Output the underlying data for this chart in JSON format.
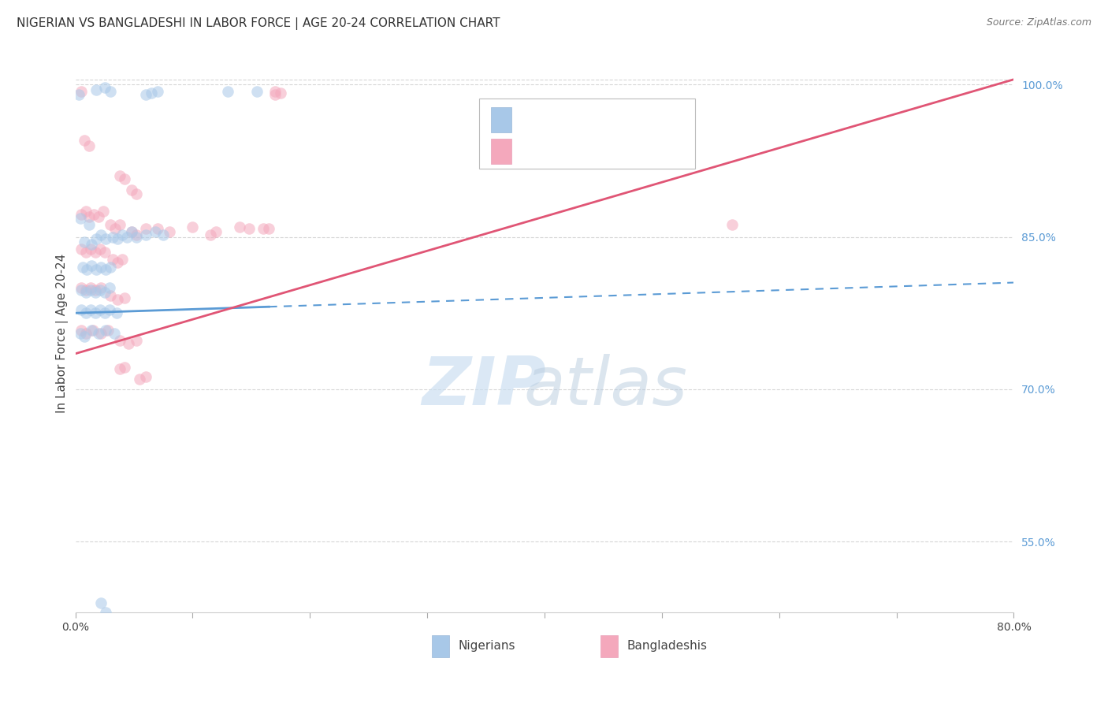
{
  "title": "NIGERIAN VS BANGLADESHI IN LABOR FORCE | AGE 20-24 CORRELATION CHART",
  "source": "Source: ZipAtlas.com",
  "ylabel": "In Labor Force | Age 20-24",
  "xlim": [
    0.0,
    0.8
  ],
  "ylim": [
    0.48,
    1.03
  ],
  "xticks": [
    0.0,
    0.1,
    0.2,
    0.3,
    0.4,
    0.5,
    0.6,
    0.7,
    0.8
  ],
  "xticklabels": [
    "0.0%",
    "",
    "",
    "",
    "",
    "",
    "",
    "",
    "80.0%"
  ],
  "yticks": [
    0.55,
    0.7,
    0.85,
    1.0
  ],
  "yticklabels": [
    "55.0%",
    "70.0%",
    "85.0%",
    "100.0%"
  ],
  "nig_color": "#a8c8e8",
  "ban_color": "#f4a8bc",
  "nig_line_color": "#5b9bd5",
  "ban_line_color": "#e05575",
  "nig_line_solid_end": 0.165,
  "nig_line_y0": 0.775,
  "nig_line_y1": 0.805,
  "ban_line_y0": 0.735,
  "ban_line_y1": 1.005,
  "watermark_zip_color": "#c8dcf0",
  "watermark_atlas_color": "#b8cce4",
  "dot_size": 110,
  "dot_alpha": 0.55,
  "background_color": "#ffffff",
  "grid_color": "#cccccc",
  "title_fontsize": 11,
  "axis_label_fontsize": 11,
  "tick_fontsize": 10,
  "source_fontsize": 9,
  "nigerian_dots": [
    [
      0.003,
      0.99
    ],
    [
      0.018,
      0.995
    ],
    [
      0.025,
      0.997
    ],
    [
      0.03,
      0.993
    ],
    [
      0.06,
      0.99
    ],
    [
      0.065,
      0.992
    ],
    [
      0.07,
      0.993
    ],
    [
      0.13,
      0.993
    ],
    [
      0.155,
      0.993
    ],
    [
      0.004,
      0.868
    ],
    [
      0.012,
      0.862
    ],
    [
      0.008,
      0.845
    ],
    [
      0.014,
      0.843
    ],
    [
      0.018,
      0.848
    ],
    [
      0.022,
      0.852
    ],
    [
      0.026,
      0.848
    ],
    [
      0.032,
      0.85
    ],
    [
      0.036,
      0.848
    ],
    [
      0.04,
      0.852
    ],
    [
      0.044,
      0.85
    ],
    [
      0.048,
      0.855
    ],
    [
      0.052,
      0.85
    ],
    [
      0.06,
      0.852
    ],
    [
      0.068,
      0.855
    ],
    [
      0.075,
      0.852
    ],
    [
      0.006,
      0.82
    ],
    [
      0.01,
      0.818
    ],
    [
      0.014,
      0.822
    ],
    [
      0.018,
      0.818
    ],
    [
      0.022,
      0.82
    ],
    [
      0.026,
      0.818
    ],
    [
      0.03,
      0.82
    ],
    [
      0.005,
      0.798
    ],
    [
      0.009,
      0.795
    ],
    [
      0.013,
      0.798
    ],
    [
      0.017,
      0.795
    ],
    [
      0.021,
      0.798
    ],
    [
      0.025,
      0.795
    ],
    [
      0.029,
      0.8
    ],
    [
      0.005,
      0.778
    ],
    [
      0.009,
      0.775
    ],
    [
      0.013,
      0.778
    ],
    [
      0.017,
      0.775
    ],
    [
      0.021,
      0.778
    ],
    [
      0.025,
      0.775
    ],
    [
      0.029,
      0.778
    ],
    [
      0.035,
      0.775
    ],
    [
      0.004,
      0.755
    ],
    [
      0.008,
      0.752
    ],
    [
      0.014,
      0.758
    ],
    [
      0.02,
      0.755
    ],
    [
      0.026,
      0.758
    ],
    [
      0.033,
      0.755
    ],
    [
      0.022,
      0.49
    ],
    [
      0.026,
      0.48
    ]
  ],
  "bangladeshi_dots": [
    [
      0.005,
      0.993
    ],
    [
      0.17,
      0.993
    ],
    [
      0.17,
      0.99
    ],
    [
      0.175,
      0.992
    ],
    [
      0.008,
      0.945
    ],
    [
      0.012,
      0.94
    ],
    [
      0.038,
      0.91
    ],
    [
      0.042,
      0.907
    ],
    [
      0.048,
      0.896
    ],
    [
      0.052,
      0.892
    ],
    [
      0.005,
      0.872
    ],
    [
      0.009,
      0.875
    ],
    [
      0.012,
      0.87
    ],
    [
      0.016,
      0.872
    ],
    [
      0.02,
      0.87
    ],
    [
      0.024,
      0.875
    ],
    [
      0.03,
      0.862
    ],
    [
      0.034,
      0.858
    ],
    [
      0.038,
      0.862
    ],
    [
      0.048,
      0.855
    ],
    [
      0.052,
      0.852
    ],
    [
      0.06,
      0.858
    ],
    [
      0.07,
      0.858
    ],
    [
      0.08,
      0.855
    ],
    [
      0.1,
      0.86
    ],
    [
      0.115,
      0.852
    ],
    [
      0.12,
      0.855
    ],
    [
      0.14,
      0.86
    ],
    [
      0.148,
      0.858
    ],
    [
      0.16,
      0.858
    ],
    [
      0.165,
      0.858
    ],
    [
      0.005,
      0.838
    ],
    [
      0.009,
      0.835
    ],
    [
      0.013,
      0.838
    ],
    [
      0.017,
      0.835
    ],
    [
      0.021,
      0.838
    ],
    [
      0.025,
      0.835
    ],
    [
      0.032,
      0.828
    ],
    [
      0.036,
      0.825
    ],
    [
      0.04,
      0.828
    ],
    [
      0.005,
      0.8
    ],
    [
      0.009,
      0.798
    ],
    [
      0.013,
      0.8
    ],
    [
      0.017,
      0.798
    ],
    [
      0.022,
      0.8
    ],
    [
      0.03,
      0.792
    ],
    [
      0.036,
      0.788
    ],
    [
      0.042,
      0.79
    ],
    [
      0.005,
      0.758
    ],
    [
      0.009,
      0.755
    ],
    [
      0.015,
      0.758
    ],
    [
      0.022,
      0.755
    ],
    [
      0.028,
      0.758
    ],
    [
      0.038,
      0.748
    ],
    [
      0.045,
      0.745
    ],
    [
      0.052,
      0.748
    ],
    [
      0.038,
      0.72
    ],
    [
      0.042,
      0.722
    ],
    [
      0.055,
      0.71
    ],
    [
      0.06,
      0.712
    ],
    [
      0.56,
      0.862
    ]
  ]
}
